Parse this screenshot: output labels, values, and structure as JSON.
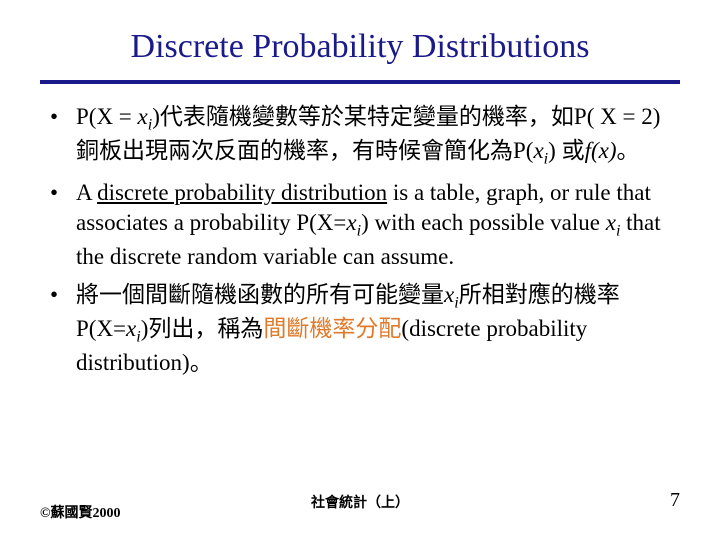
{
  "title": "Discrete Probability Distributions",
  "title_color": "#1a1a8a",
  "rule_color": "#1a1a8a",
  "bullets": {
    "b1_pre": "P(X = ",
    "b1_x": "x",
    "b1_i": "i",
    "b1_mid1": ")代表隨機變數等於某特定變量的機率，如P( X = 2)銅板出現兩次反面的機率，有時候會簡化為P(",
    "b1_x2": "x",
    "b1_i2": "i",
    "b1_mid2": ") 或",
    "b1_fx": "f(x)",
    "b1_end": "。",
    "b2_pre": "A ",
    "b2_u": "discrete probability distribution",
    "b2_mid": " is a table, graph, or rule that associates a probability P(X=",
    "b2_x": "x",
    "b2_i": "i",
    "b2_mid2": ") with each possible value ",
    "b2_x2": "x",
    "b2_i2": "i",
    "b2_end": " that the discrete random variable can assume.",
    "b3_pre": "將一個間斷隨機函數的所有可能變量",
    "b3_x": "x",
    "b3_i": "i",
    "b3_mid": "所相對應的機率P(X=",
    "b3_x2": "x",
    "b3_i2": "i",
    "b3_mid2": ")列出，稱為",
    "b3_orange": "間斷機率分配",
    "b3_end": "(discrete probability distribution)。"
  },
  "footer": {
    "copyright": "©蘇國賢2000",
    "center": "社會統計（上）",
    "page": "7"
  },
  "orange_color": "#e07a2a"
}
